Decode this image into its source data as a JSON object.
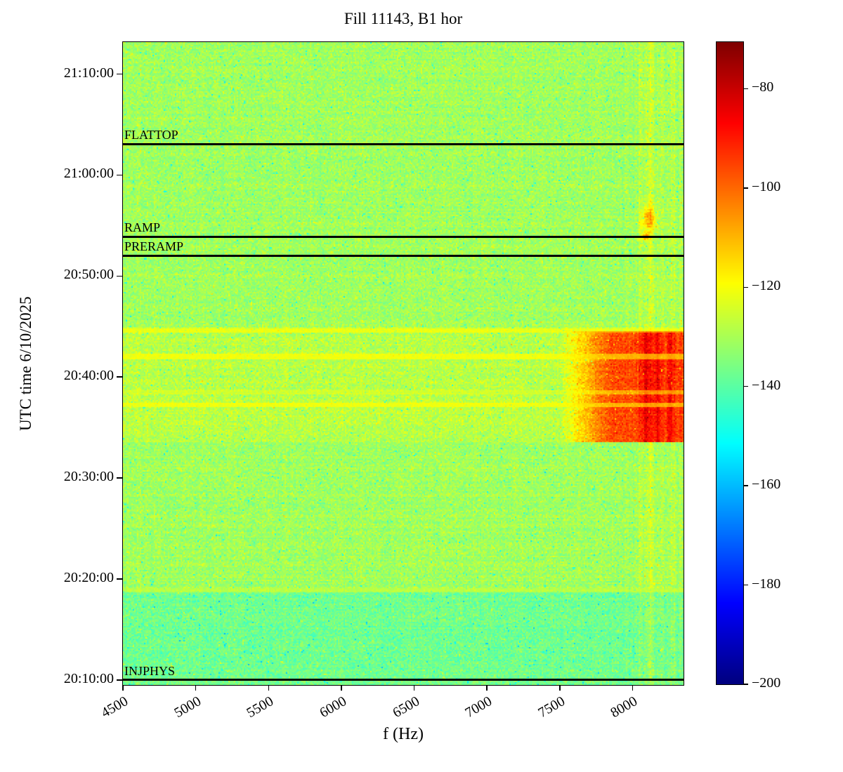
{
  "chart_data": {
    "type": "heatmap",
    "title": "Fill 11143, B1 hor",
    "xlabel": "f (Hz)",
    "ylabel": "UTC time 6/10/2025",
    "date": "6/10/2025",
    "x_range": [
      4500,
      8350
    ],
    "x_ticks": [
      4500,
      5000,
      5500,
      6000,
      6500,
      7000,
      7500,
      8000
    ],
    "y_time_range": [
      "20:09:30",
      "21:13:10"
    ],
    "y_ticks": [
      "21:10:00",
      "21:00:00",
      "20:50:00",
      "20:40:00",
      "20:30:00",
      "20:20:00",
      "20:10:00"
    ],
    "colormap": "jet",
    "colorbar": {
      "vmin": -200,
      "vmax": -70.6,
      "ticks": [
        {
          "v": -80,
          "label": "−80"
        },
        {
          "v": -100,
          "label": "−100"
        },
        {
          "v": -120,
          "label": "−120"
        },
        {
          "v": -140,
          "label": "−140"
        },
        {
          "v": -160,
          "label": "−160"
        },
        {
          "v": -180,
          "label": "−180"
        },
        {
          "v": -200,
          "label": "−200"
        }
      ]
    },
    "noise": {
      "base_db": -131,
      "spread_db": 8
    },
    "annotations": [
      {
        "label": "FLATTOP",
        "time": "21:03:05"
      },
      {
        "label": "RAMP",
        "time": "20:53:53"
      },
      {
        "label": "PRERAMP",
        "time": "20:52:01"
      },
      {
        "label": "INJPHYS",
        "time": "20:10:00"
      }
    ],
    "features": [
      {
        "kind": "hband",
        "t0": "20:09:30",
        "t1": "20:18:40",
        "delta": -6
      },
      {
        "kind": "hband",
        "t0": "20:33:30",
        "t1": "20:45:00",
        "delta": 3
      },
      {
        "kind": "vstreak",
        "f": 8050,
        "sigma": 10,
        "delta": 3
      },
      {
        "kind": "vstreak",
        "f": 8120,
        "sigma": 18,
        "delta": 7
      },
      {
        "kind": "vstreak",
        "f": 8200,
        "sigma": 14,
        "delta": 5
      },
      {
        "kind": "vstreak",
        "f": 8280,
        "sigma": 12,
        "delta": 4
      },
      {
        "kind": "vstreak",
        "f": 8330,
        "sigma": 10,
        "delta": 4
      },
      {
        "kind": "blob",
        "f0": 7500,
        "f1": 8350,
        "t0": "20:33:30",
        "t1": "20:44:30",
        "delta": 32,
        "ramp": 350
      },
      {
        "kind": "vstreak",
        "f": 8090,
        "sigma": 14,
        "delta": 10,
        "t0": "20:33:30",
        "t1": "20:44:30"
      },
      {
        "kind": "vstreak",
        "f": 8170,
        "sigma": 13,
        "delta": 10,
        "t0": "20:33:30",
        "t1": "20:44:30"
      },
      {
        "kind": "vstreak",
        "f": 8255,
        "sigma": 12,
        "delta": 9,
        "t0": "20:33:30",
        "t1": "20:44:30"
      },
      {
        "kind": "spot",
        "f": 8110,
        "t": "20:55:40",
        "sf": 35,
        "st": 50,
        "delta": 20
      },
      {
        "kind": "spot",
        "f": 8090,
        "t": "20:53:55",
        "sf": 18,
        "st": 14,
        "delta": 26
      },
      {
        "kind": "rowmix",
        "t0": "20:41:45",
        "t1": "20:42:15",
        "level": -117,
        "mix": 0.65
      },
      {
        "kind": "rowmix",
        "t0": "20:37:00",
        "t1": "20:37:30",
        "level": -117,
        "mix": 0.65
      },
      {
        "kind": "rowmix",
        "t0": "20:38:15",
        "t1": "20:38:45",
        "level": -121,
        "mix": 0.5
      },
      {
        "kind": "rowmix",
        "t0": "20:44:20",
        "t1": "20:44:45",
        "level": -116,
        "mix": 0.55
      },
      {
        "kind": "rowmix",
        "t0": "20:18:40",
        "t1": "20:19:05",
        "level": -124,
        "mix": 0.5
      }
    ]
  }
}
